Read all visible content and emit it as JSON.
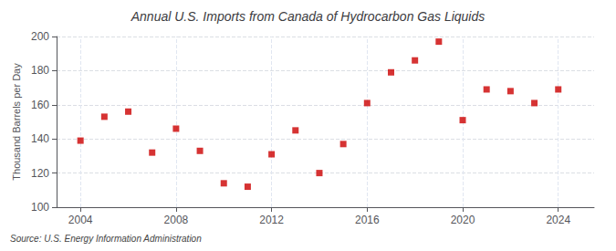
{
  "chart_data": {
    "type": "scatter",
    "title": "Annual U.S. Imports from Canada of Hydrocarbon Gas Liquids",
    "ylabel": "Thousand Barrels per Day",
    "source": "Source: U.S. Energy Information Administration",
    "x": [
      2004,
      2005,
      2006,
      2007,
      2008,
      2009,
      2010,
      2011,
      2012,
      2013,
      2014,
      2015,
      2016,
      2017,
      2018,
      2019,
      2020,
      2021,
      2022,
      2023,
      2024
    ],
    "values": [
      139,
      153,
      156,
      132,
      146,
      133,
      114,
      112,
      131,
      145,
      120,
      137,
      161,
      179,
      186,
      197,
      151,
      169,
      168,
      161,
      169
    ],
    "color": "#cc0000",
    "marker": "square",
    "xlim": [
      2003.0,
      2025.5
    ],
    "xticks": [
      2004,
      2008,
      2012,
      2016,
      2020,
      2024
    ],
    "ylim": [
      100,
      200
    ],
    "yticks": [
      100,
      120,
      140,
      160,
      180,
      200
    ],
    "grid": true
  }
}
